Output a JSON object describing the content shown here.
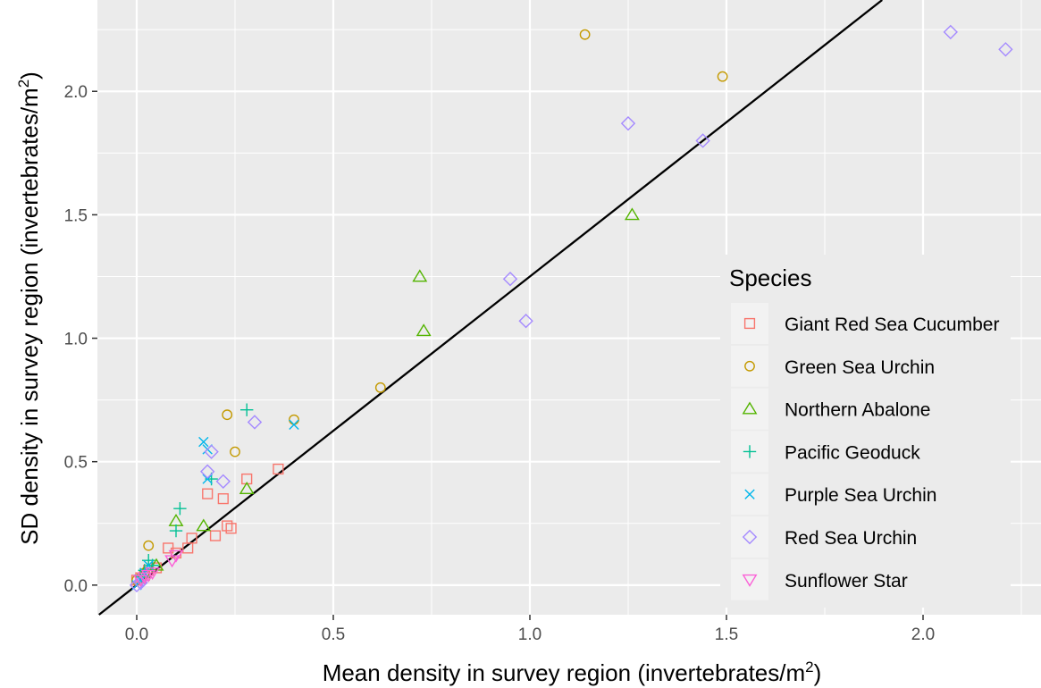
{
  "chart_data": {
    "type": "scatter",
    "xlabel": "Mean density in survey region  (invertebrates/m",
    "xlabel_sup": "2",
    "xlabel_end": ")",
    "ylabel": "SD density in survey region  (invertebrates/m",
    "ylabel_sup": "2",
    "ylabel_end": ")",
    "xlim": [
      -0.1,
      2.3
    ],
    "ylim": [
      -0.12,
      2.37
    ],
    "x_ticks": [
      {
        "value": 0.0,
        "label": "0.0"
      },
      {
        "value": 0.5,
        "label": "0.5"
      },
      {
        "value": 1.0,
        "label": "1.0"
      },
      {
        "value": 1.5,
        "label": "1.5"
      },
      {
        "value": 2.0,
        "label": "2.0"
      }
    ],
    "y_ticks": [
      {
        "value": 0.0,
        "label": "0.0"
      },
      {
        "value": 0.5,
        "label": "0.5"
      },
      {
        "value": 1.0,
        "label": "1.0"
      },
      {
        "value": 1.5,
        "label": "1.5"
      },
      {
        "value": 2.0,
        "label": "2.0"
      }
    ],
    "grid": true,
    "background": "#ebebeb",
    "legend": {
      "title": "Species",
      "position": "right, inside"
    },
    "reference_line": {
      "slope": 1.25,
      "intercept": 0.0,
      "color": "#000000"
    },
    "series": [
      {
        "name": "Giant Red Sea Cucumber",
        "shape": "square",
        "color": "#F8766D",
        "points": [
          {
            "x": 0.36,
            "y": 0.47
          },
          {
            "x": 0.28,
            "y": 0.43
          },
          {
            "x": 0.18,
            "y": 0.37
          },
          {
            "x": 0.22,
            "y": 0.35
          },
          {
            "x": 0.23,
            "y": 0.24
          },
          {
            "x": 0.24,
            "y": 0.23
          },
          {
            "x": 0.2,
            "y": 0.2
          },
          {
            "x": 0.14,
            "y": 0.19
          },
          {
            "x": 0.08,
            "y": 0.15
          },
          {
            "x": 0.13,
            "y": 0.15
          },
          {
            "x": 0.1,
            "y": 0.13
          },
          {
            "x": 0.05,
            "y": 0.07
          },
          {
            "x": 0.03,
            "y": 0.06
          },
          {
            "x": 0.02,
            "y": 0.04
          },
          {
            "x": 0.01,
            "y": 0.03
          },
          {
            "x": 0.0,
            "y": 0.02
          }
        ]
      },
      {
        "name": "Green Sea Urchin",
        "shape": "circle",
        "color": "#C49A00",
        "points": [
          {
            "x": 1.14,
            "y": 2.23
          },
          {
            "x": 1.49,
            "y": 2.06
          },
          {
            "x": 0.62,
            "y": 0.8
          },
          {
            "x": 0.23,
            "y": 0.69
          },
          {
            "x": 0.4,
            "y": 0.67
          },
          {
            "x": 0.25,
            "y": 0.54
          },
          {
            "x": 0.03,
            "y": 0.16
          },
          {
            "x": 0.02,
            "y": 0.05
          },
          {
            "x": 0.01,
            "y": 0.03
          },
          {
            "x": 0.0,
            "y": 0.02
          }
        ]
      },
      {
        "name": "Northern Abalone",
        "shape": "triangle-up",
        "color": "#53B400",
        "points": [
          {
            "x": 1.26,
            "y": 1.5
          },
          {
            "x": 0.72,
            "y": 1.25
          },
          {
            "x": 0.73,
            "y": 1.03
          },
          {
            "x": 0.28,
            "y": 0.39
          },
          {
            "x": 0.1,
            "y": 0.26
          },
          {
            "x": 0.17,
            "y": 0.24
          },
          {
            "x": 0.05,
            "y": 0.08
          },
          {
            "x": 0.02,
            "y": 0.05
          }
        ]
      },
      {
        "name": "Pacific Geoduck",
        "shape": "plus",
        "color": "#00C094",
        "points": [
          {
            "x": 0.28,
            "y": 0.71
          },
          {
            "x": 0.19,
            "y": 0.43
          },
          {
            "x": 0.11,
            "y": 0.31
          },
          {
            "x": 0.1,
            "y": 0.22
          },
          {
            "x": 0.03,
            "y": 0.1
          },
          {
            "x": 0.04,
            "y": 0.08
          },
          {
            "x": 0.02,
            "y": 0.06
          },
          {
            "x": 0.01,
            "y": 0.04
          }
        ]
      },
      {
        "name": "Purple Sea Urchin",
        "shape": "cross",
        "color": "#00B6EB",
        "points": [
          {
            "x": 0.4,
            "y": 0.65
          },
          {
            "x": 0.17,
            "y": 0.58
          },
          {
            "x": 0.18,
            "y": 0.55
          },
          {
            "x": 0.18,
            "y": 0.43
          },
          {
            "x": 0.03,
            "y": 0.08
          },
          {
            "x": 0.02,
            "y": 0.05
          },
          {
            "x": 0.01,
            "y": 0.02
          },
          {
            "x": 0.0,
            "y": 0.0
          }
        ]
      },
      {
        "name": "Red Sea Urchin",
        "shape": "diamond",
        "color": "#A58AFF",
        "points": [
          {
            "x": 2.07,
            "y": 2.24
          },
          {
            "x": 2.21,
            "y": 2.17
          },
          {
            "x": 1.25,
            "y": 1.87
          },
          {
            "x": 1.44,
            "y": 1.8
          },
          {
            "x": 0.95,
            "y": 1.24
          },
          {
            "x": 0.99,
            "y": 1.07
          },
          {
            "x": 0.3,
            "y": 0.66
          },
          {
            "x": 0.19,
            "y": 0.54
          },
          {
            "x": 0.18,
            "y": 0.46
          },
          {
            "x": 0.22,
            "y": 0.42
          },
          {
            "x": 0.01,
            "y": 0.01
          },
          {
            "x": 0.0,
            "y": 0.0
          }
        ]
      },
      {
        "name": "Sunflower Star",
        "shape": "triangle-down",
        "color": "#FB61D7",
        "points": [
          {
            "x": 0.09,
            "y": 0.1
          },
          {
            "x": 0.1,
            "y": 0.12
          },
          {
            "x": 0.04,
            "y": 0.05
          },
          {
            "x": 0.03,
            "y": 0.04
          },
          {
            "x": 0.02,
            "y": 0.03
          },
          {
            "x": 0.01,
            "y": 0.02
          }
        ]
      }
    ]
  }
}
